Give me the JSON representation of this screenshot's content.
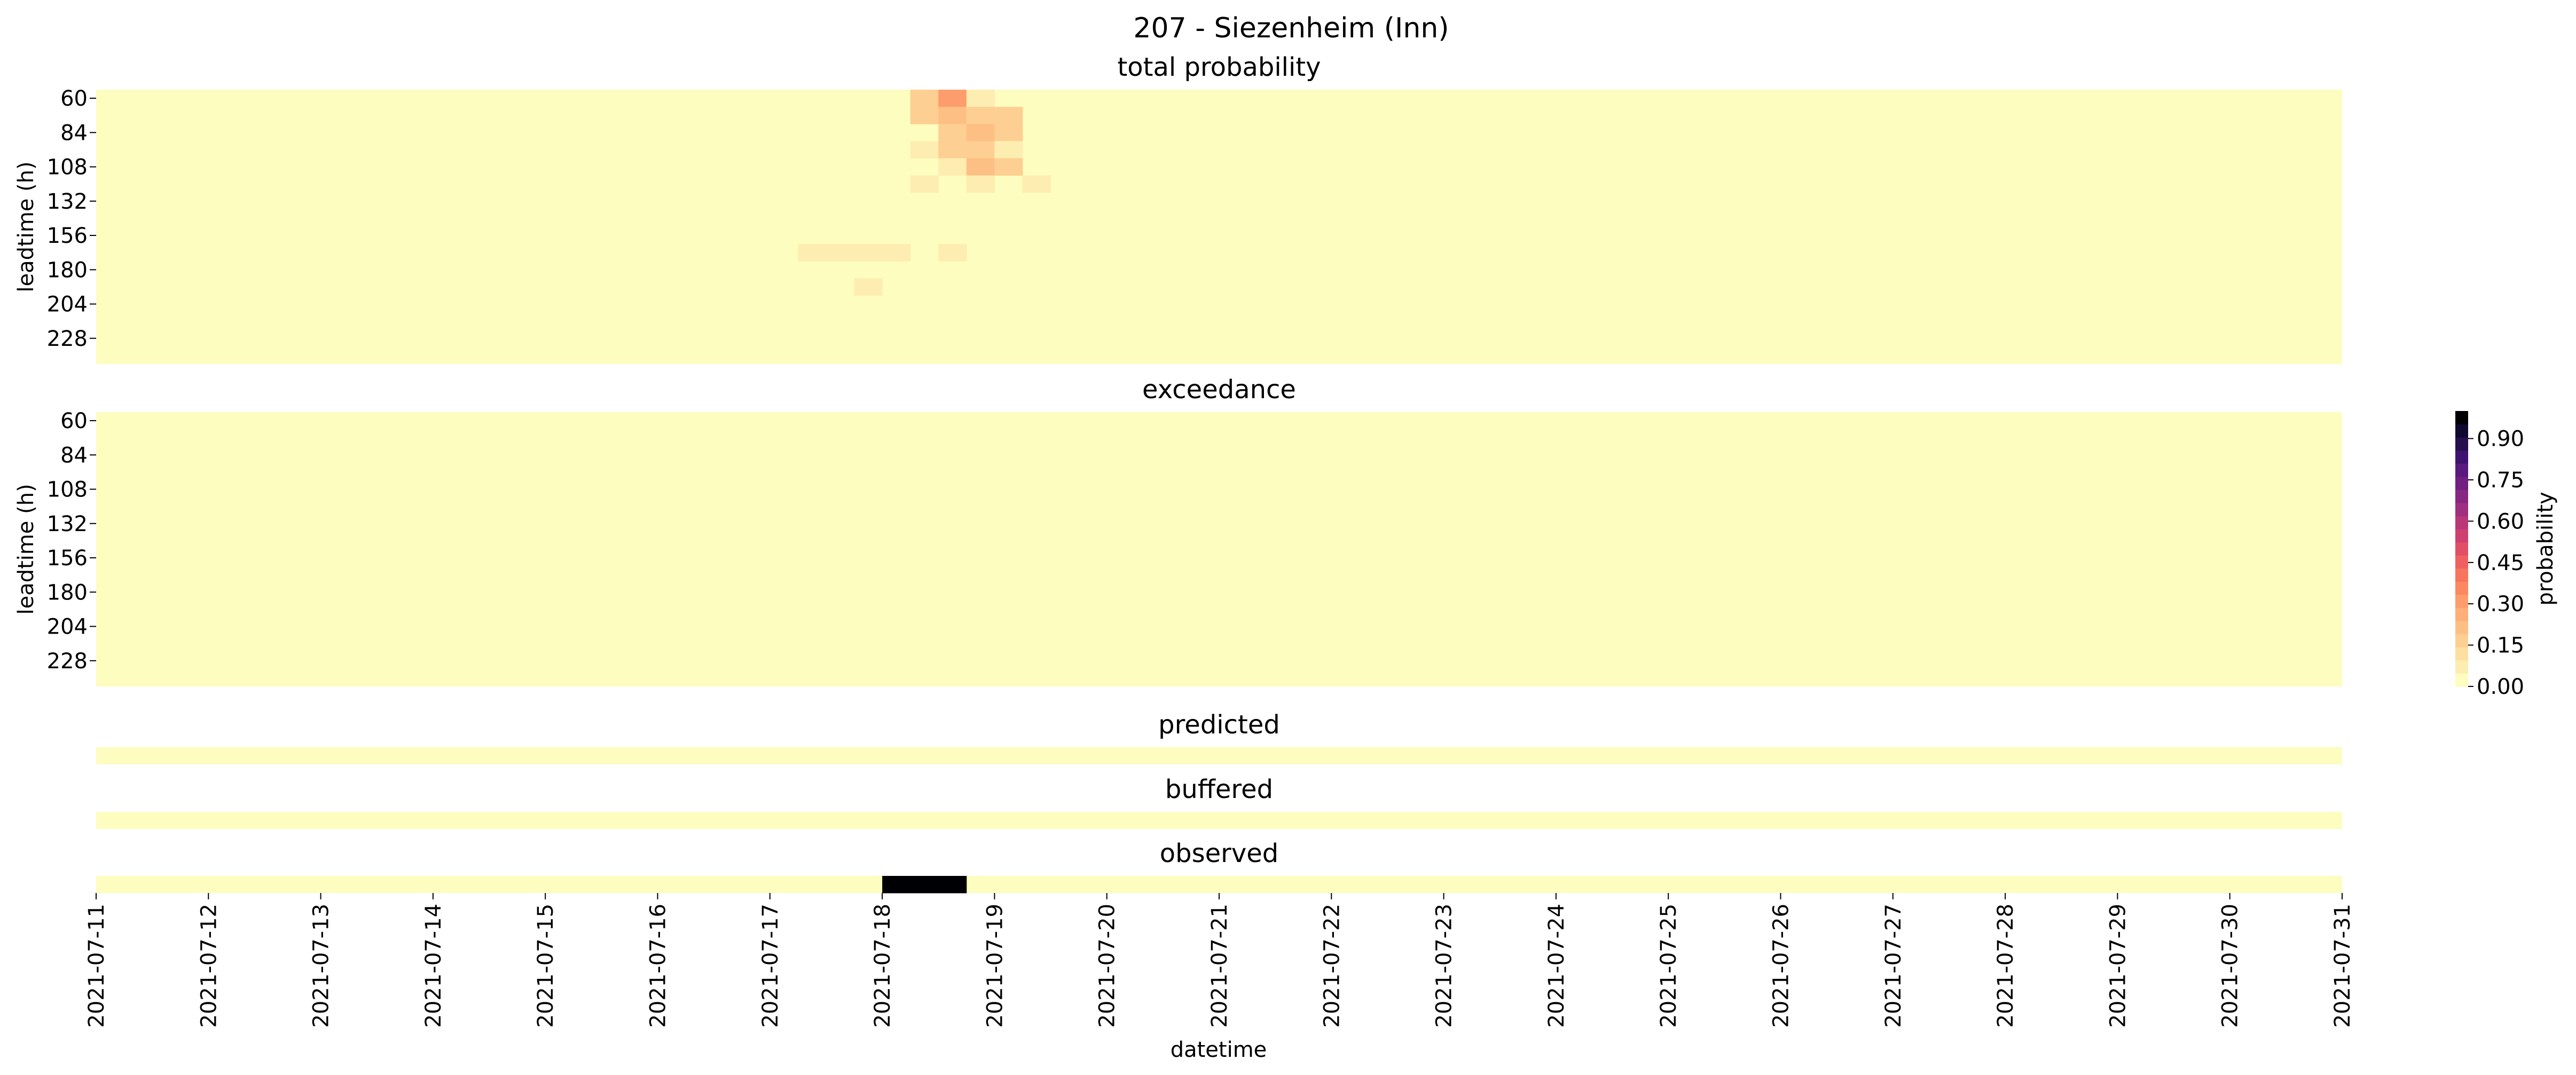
{
  "figure": {
    "title": "207 - Siezenheim (Inn)",
    "xlabel": "datetime",
    "x_ticks": [
      "2021-07-11",
      "2021-07-12",
      "2021-07-13",
      "2021-07-14",
      "2021-07-15",
      "2021-07-16",
      "2021-07-17",
      "2021-07-18",
      "2021-07-19",
      "2021-07-20",
      "2021-07-21",
      "2021-07-22",
      "2021-07-23",
      "2021-07-24",
      "2021-07-25",
      "2021-07-26",
      "2021-07-27",
      "2021-07-28",
      "2021-07-29",
      "2021-07-30",
      "2021-07-31"
    ]
  },
  "colorbar": {
    "label": "probability",
    "ticks": [
      "0.00",
      "0.15",
      "0.30",
      "0.45",
      "0.60",
      "0.75",
      "0.90"
    ],
    "range": [
      0,
      1
    ],
    "colors": [
      "#fcfdbf",
      "#feedb0",
      "#fedfa2",
      "#fecf92",
      "#febf84",
      "#feae77",
      "#fd9d6d",
      "#fb8861",
      "#f6755c",
      "#ef6160",
      "#e14e66",
      "#cd406f",
      "#b73779",
      "#9f2f7f",
      "#872781",
      "#711f81",
      "#581a7e",
      "#3e1370",
      "#250f4d",
      "#10092f",
      "#000004"
    ]
  },
  "chart_data": [
    {
      "type": "heatmap",
      "title": "total probability",
      "ylabel": "leadtime (h)",
      "y_ticks": [
        60,
        84,
        108,
        132,
        156,
        180,
        204,
        228
      ],
      "x_range": [
        "2021-07-11",
        "2021-07-31"
      ],
      "cells": [
        {
          "x": "2021-07-18T06:00",
          "y": 60,
          "value": 0.15
        },
        {
          "x": "2021-07-18T12:00",
          "y": 60,
          "value": 0.3
        },
        {
          "x": "2021-07-18T18:00",
          "y": 60,
          "value": 0.08
        },
        {
          "x": "2021-07-18T06:00",
          "y": 72,
          "value": 0.15
        },
        {
          "x": "2021-07-18T12:00",
          "y": 72,
          "value": 0.22
        },
        {
          "x": "2021-07-18T18:00",
          "y": 72,
          "value": 0.15
        },
        {
          "x": "2021-07-19T00:00",
          "y": 72,
          "value": 0.15
        },
        {
          "x": "2021-07-18T12:00",
          "y": 84,
          "value": 0.15
        },
        {
          "x": "2021-07-18T18:00",
          "y": 84,
          "value": 0.22
        },
        {
          "x": "2021-07-19T00:00",
          "y": 84,
          "value": 0.15
        },
        {
          "x": "2021-07-18T06:00",
          "y": 96,
          "value": 0.08
        },
        {
          "x": "2021-07-18T12:00",
          "y": 96,
          "value": 0.15
        },
        {
          "x": "2021-07-18T18:00",
          "y": 96,
          "value": 0.15
        },
        {
          "x": "2021-07-19T00:00",
          "y": 96,
          "value": 0.08
        },
        {
          "x": "2021-07-18T12:00",
          "y": 108,
          "value": 0.08
        },
        {
          "x": "2021-07-18T18:00",
          "y": 108,
          "value": 0.22
        },
        {
          "x": "2021-07-19T00:00",
          "y": 108,
          "value": 0.15
        },
        {
          "x": "2021-07-18T06:00",
          "y": 120,
          "value": 0.08
        },
        {
          "x": "2021-07-18T18:00",
          "y": 120,
          "value": 0.08
        },
        {
          "x": "2021-07-19T06:00",
          "y": 120,
          "value": 0.08
        },
        {
          "x": "2021-07-17T06:00",
          "y": 168,
          "value": 0.08
        },
        {
          "x": "2021-07-17T12:00",
          "y": 168,
          "value": 0.08
        },
        {
          "x": "2021-07-17T18:00",
          "y": 168,
          "value": 0.08
        },
        {
          "x": "2021-07-18T00:00",
          "y": 168,
          "value": 0.08
        },
        {
          "x": "2021-07-18T12:00",
          "y": 168,
          "value": 0.08
        },
        {
          "x": "2021-07-17T18:00",
          "y": 192,
          "value": 0.08
        }
      ]
    },
    {
      "type": "heatmap",
      "title": "exceedance",
      "ylabel": "leadtime (h)",
      "y_ticks": [
        60,
        84,
        108,
        132,
        156,
        180,
        204,
        228
      ],
      "x_range": [
        "2021-07-11",
        "2021-07-31"
      ],
      "cells": []
    },
    {
      "type": "heatmap",
      "title": "predicted",
      "x_range": [
        "2021-07-11",
        "2021-07-31"
      ],
      "cells": []
    },
    {
      "type": "heatmap",
      "title": "buffered",
      "x_range": [
        "2021-07-11",
        "2021-07-31"
      ],
      "cells": []
    },
    {
      "type": "heatmap",
      "title": "observed",
      "x_range": [
        "2021-07-11",
        "2021-07-31"
      ],
      "cells": [
        {
          "x": "2021-07-18T00:00",
          "value": 1.0
        },
        {
          "x": "2021-07-18T06:00",
          "value": 1.0
        },
        {
          "x": "2021-07-18T12:00",
          "value": 1.0
        }
      ]
    }
  ]
}
